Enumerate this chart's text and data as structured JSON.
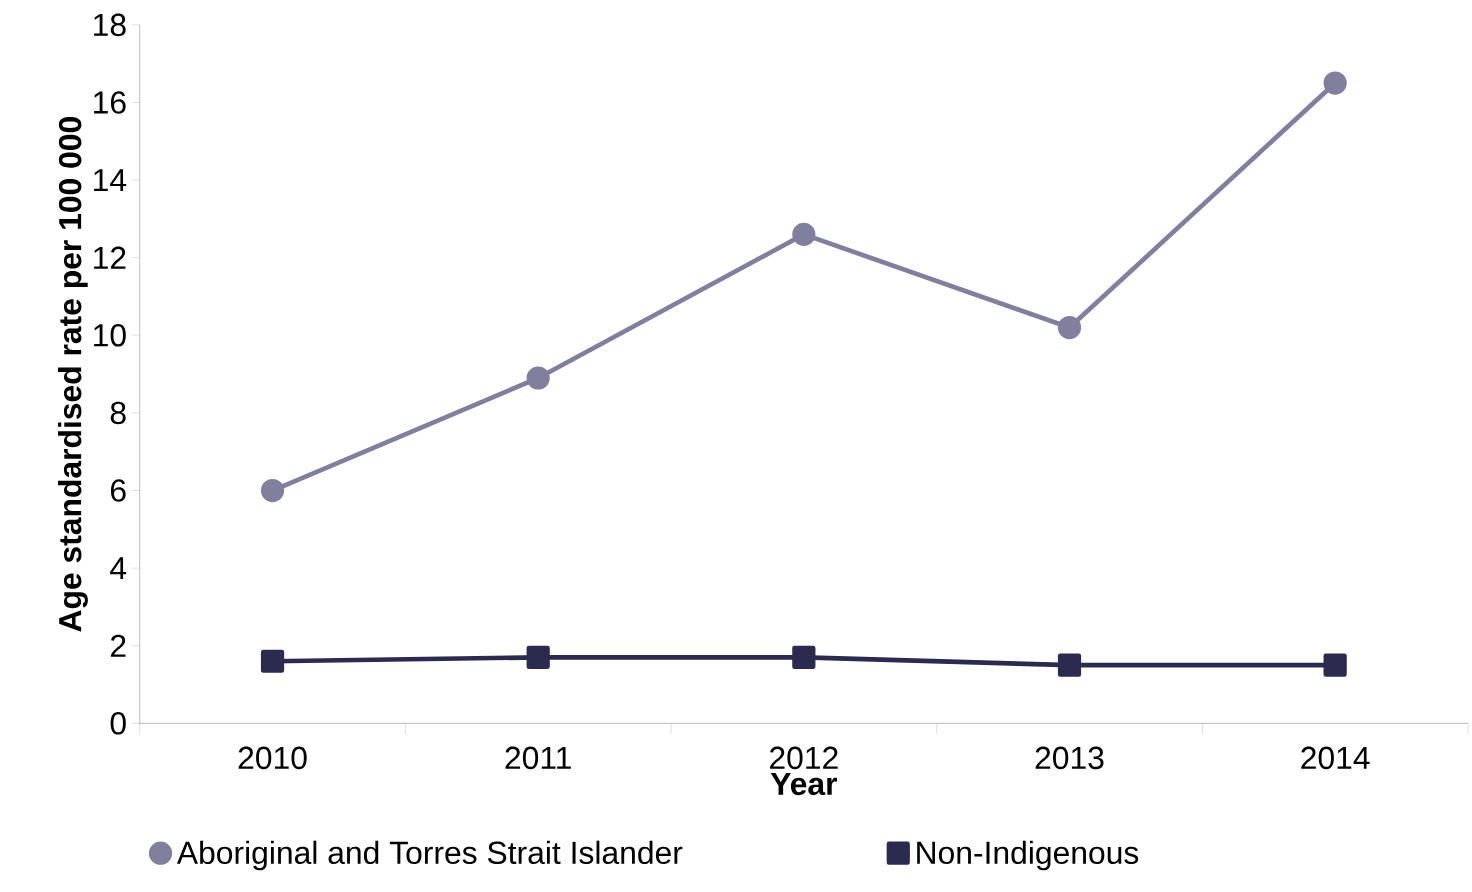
{
  "chart_data": {
    "type": "line",
    "xlabel": "Year",
    "ylabel": "Age standardised rate per 100 000",
    "categories": [
      "2010",
      "2011",
      "2012",
      "2013",
      "2014"
    ],
    "series": [
      {
        "name": "Aboriginal and Torres Strait Islander",
        "color": "#807f9e",
        "marker": "circle",
        "values": [
          6.0,
          8.9,
          12.6,
          10.2,
          16.5
        ]
      },
      {
        "name": "Non-Indigenous",
        "color": "#2b2a4f",
        "marker": "square",
        "values": [
          1.6,
          1.7,
          1.7,
          1.5,
          1.5
        ]
      }
    ],
    "ylim": [
      0,
      18
    ],
    "yticks": [
      0,
      2,
      4,
      6,
      8,
      10,
      12,
      14,
      16,
      18
    ],
    "grid": false,
    "legend": "bottom"
  }
}
